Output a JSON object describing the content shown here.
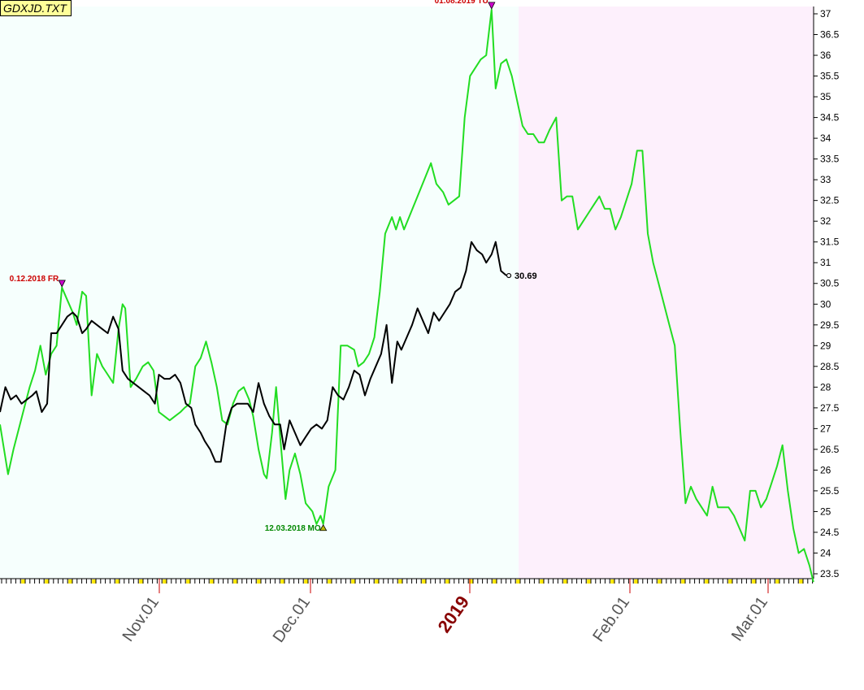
{
  "chart_data": {
    "type": "line",
    "ticker": "GDXJD.TXT",
    "x_tick_labels": [
      "Nov.01",
      "Dec.01",
      "2019",
      "Feb.01",
      "Mar.01"
    ],
    "y_ticks": [
      23.5,
      24,
      24.5,
      25,
      25.5,
      26,
      26.5,
      27,
      27.5,
      28,
      28.5,
      29,
      29.5,
      30,
      30.5,
      31,
      31.5,
      32,
      32.5,
      33,
      33.5,
      34,
      34.5,
      35,
      35.5,
      36,
      36.5,
      37
    ],
    "ylim": [
      23.3,
      37.2
    ],
    "series": [
      {
        "color": "#22dd22",
        "points": [
          [
            0,
            27.1
          ],
          [
            6,
            25.9
          ],
          [
            10,
            26.5
          ],
          [
            14,
            27
          ],
          [
            18,
            27.5
          ],
          [
            22,
            28
          ],
          [
            26,
            28.4
          ],
          [
            30,
            29
          ],
          [
            34,
            28.3
          ],
          [
            38,
            28.8
          ],
          [
            42,
            29
          ],
          [
            46,
            30.4
          ],
          [
            50,
            30.1
          ],
          [
            54,
            29.8
          ],
          [
            57,
            29.5
          ],
          [
            61,
            30.3
          ],
          [
            64,
            30.2
          ],
          [
            68,
            27.8
          ],
          [
            72,
            28.8
          ],
          [
            76,
            28.5
          ],
          [
            80,
            28.3
          ],
          [
            84,
            28.1
          ],
          [
            88,
            29.4
          ],
          [
            91,
            30
          ],
          [
            93,
            29.9
          ],
          [
            97,
            28
          ],
          [
            101,
            28.2
          ],
          [
            106,
            28.5
          ],
          [
            110,
            28.6
          ],
          [
            114,
            28.4
          ],
          [
            118,
            27.4
          ],
          [
            122,
            27.3
          ],
          [
            126,
            27.2
          ],
          [
            130,
            27.3
          ],
          [
            134,
            27.4
          ],
          [
            137,
            27.5
          ],
          [
            141,
            27.6
          ],
          [
            145,
            28.5
          ],
          [
            149,
            28.7
          ],
          [
            153,
            29.1
          ],
          [
            157,
            28.6
          ],
          [
            161,
            28
          ],
          [
            165,
            27.2
          ],
          [
            169,
            27.1
          ],
          [
            173,
            27.6
          ],
          [
            177,
            27.9
          ],
          [
            181,
            28
          ],
          [
            185,
            27.7
          ],
          [
            188,
            27.3
          ],
          [
            192,
            26.5
          ],
          [
            196,
            25.9
          ],
          [
            198,
            25.8
          ],
          [
            202,
            26.9
          ],
          [
            205,
            28
          ],
          [
            208,
            26.8
          ],
          [
            212,
            25.3
          ],
          [
            215,
            26
          ],
          [
            219,
            26.4
          ],
          [
            223,
            25.9
          ],
          [
            227,
            25.2
          ],
          [
            232,
            25
          ],
          [
            235,
            24.7
          ],
          [
            238,
            24.9
          ],
          [
            240,
            24.7
          ],
          [
            244,
            25.6
          ],
          [
            249,
            26
          ],
          [
            253,
            29
          ],
          [
            258,
            29
          ],
          [
            263,
            28.9
          ],
          [
            266,
            28.5
          ],
          [
            270,
            28.6
          ],
          [
            274,
            28.8
          ],
          [
            278,
            29.2
          ],
          [
            282,
            30.3
          ],
          [
            286,
            31.7
          ],
          [
            291,
            32.1
          ],
          [
            294,
            31.8
          ],
          [
            297,
            32.1
          ],
          [
            300,
            31.8
          ],
          [
            305,
            32.2
          ],
          [
            310,
            32.6
          ],
          [
            315,
            33
          ],
          [
            320,
            33.4
          ],
          [
            324,
            32.9
          ],
          [
            329,
            32.7
          ],
          [
            333,
            32.4
          ],
          [
            337,
            32.5
          ],
          [
            341,
            32.6
          ],
          [
            345,
            34.5
          ],
          [
            349,
            35.5
          ],
          [
            353,
            35.7
          ],
          [
            357,
            35.9
          ],
          [
            361,
            36
          ],
          [
            365,
            37.1
          ],
          [
            368,
            35.2
          ],
          [
            372,
            35.8
          ],
          [
            376,
            35.9
          ],
          [
            380,
            35.5
          ],
          [
            384,
            34.9
          ],
          [
            388,
            34.3
          ],
          [
            392,
            34.1
          ],
          [
            396,
            34.1
          ],
          [
            400,
            33.9
          ],
          [
            404,
            33.9
          ],
          [
            408,
            34.2
          ],
          [
            413,
            34.5
          ],
          [
            417,
            32.5
          ],
          [
            421,
            32.6
          ],
          [
            425,
            32.6
          ],
          [
            429,
            31.8
          ],
          [
            433,
            32
          ],
          [
            437,
            32.2
          ],
          [
            441,
            32.4
          ],
          [
            445,
            32.6
          ],
          [
            449,
            32.3
          ],
          [
            453,
            32.3
          ],
          [
            457,
            31.8
          ],
          [
            461,
            32.1
          ],
          [
            465,
            32.5
          ],
          [
            469,
            32.9
          ],
          [
            473,
            33.7
          ],
          [
            477,
            33.7
          ],
          [
            481,
            31.7
          ],
          [
            485,
            31
          ],
          [
            489,
            30.5
          ],
          [
            493,
            30
          ],
          [
            497,
            29.5
          ],
          [
            501,
            29
          ],
          [
            505,
            27
          ],
          [
            509,
            25.2
          ],
          [
            513,
            25.6
          ],
          [
            517,
            25.3
          ],
          [
            521,
            25.1
          ],
          [
            525,
            24.9
          ],
          [
            529,
            25.6
          ],
          [
            533,
            25.1
          ],
          [
            537,
            25.1
          ],
          [
            541,
            25.1
          ],
          [
            545,
            24.9
          ],
          [
            549,
            24.6
          ],
          [
            553,
            24.3
          ],
          [
            557,
            25.5
          ],
          [
            561,
            25.5
          ],
          [
            565,
            25.1
          ],
          [
            569,
            25.3
          ],
          [
            573,
            25.7
          ],
          [
            577,
            26.1
          ],
          [
            581,
            26.6
          ],
          [
            585,
            25.5
          ],
          [
            589,
            24.6
          ],
          [
            593,
            24
          ],
          [
            597,
            24.1
          ],
          [
            601,
            23.7
          ],
          [
            604,
            23.3
          ]
        ]
      },
      {
        "color": "#000000",
        "points": [
          [
            0,
            27.4
          ],
          [
            4,
            28
          ],
          [
            8,
            27.7
          ],
          [
            12,
            27.8
          ],
          [
            16,
            27.6
          ],
          [
            20,
            27.7
          ],
          [
            24,
            27.8
          ],
          [
            27,
            27.9
          ],
          [
            31,
            27.4
          ],
          [
            35,
            27.6
          ],
          [
            38,
            29.3
          ],
          [
            42,
            29.3
          ],
          [
            46,
            29.5
          ],
          [
            50,
            29.7
          ],
          [
            54,
            29.8
          ],
          [
            57,
            29.7
          ],
          [
            61,
            29.3
          ],
          [
            64,
            29.4
          ],
          [
            68,
            29.6
          ],
          [
            72,
            29.5
          ],
          [
            76,
            29.4
          ],
          [
            80,
            29.3
          ],
          [
            84,
            29.7
          ],
          [
            88,
            29.4
          ],
          [
            91,
            28.4
          ],
          [
            95,
            28.2
          ],
          [
            99,
            28.1
          ],
          [
            103,
            28
          ],
          [
            107,
            27.9
          ],
          [
            111,
            27.8
          ],
          [
            115,
            27.6
          ],
          [
            118,
            28.3
          ],
          [
            122,
            28.2
          ],
          [
            126,
            28.2
          ],
          [
            130,
            28.3
          ],
          [
            134,
            28.1
          ],
          [
            138,
            27.6
          ],
          [
            142,
            27.5
          ],
          [
            145,
            27.1
          ],
          [
            149,
            26.9
          ],
          [
            152,
            26.7
          ],
          [
            156,
            26.5
          ],
          [
            160,
            26.2
          ],
          [
            164,
            26.2
          ],
          [
            168,
            27.1
          ],
          [
            172,
            27.5
          ],
          [
            176,
            27.6
          ],
          [
            180,
            27.6
          ],
          [
            184,
            27.6
          ],
          [
            188,
            27.4
          ],
          [
            192,
            28.1
          ],
          [
            196,
            27.6
          ],
          [
            200,
            27.3
          ],
          [
            204,
            27.1
          ],
          [
            208,
            27.1
          ],
          [
            211,
            26.5
          ],
          [
            215,
            27.2
          ],
          [
            219,
            26.9
          ],
          [
            223,
            26.6
          ],
          [
            227,
            26.8
          ],
          [
            231,
            27
          ],
          [
            235,
            27.1
          ],
          [
            239,
            27
          ],
          [
            243,
            27.2
          ],
          [
            247,
            28
          ],
          [
            251,
            27.8
          ],
          [
            255,
            27.7
          ],
          [
            259,
            28
          ],
          [
            263,
            28.4
          ],
          [
            267,
            28.3
          ],
          [
            271,
            27.8
          ],
          [
            275,
            28.2
          ],
          [
            279,
            28.5
          ],
          [
            283,
            28.8
          ],
          [
            287,
            29.5
          ],
          [
            291,
            28.1
          ],
          [
            295,
            29.1
          ],
          [
            298,
            28.9
          ],
          [
            302,
            29.2
          ],
          [
            306,
            29.5
          ],
          [
            310,
            29.9
          ],
          [
            314,
            29.6
          ],
          [
            318,
            29.3
          ],
          [
            322,
            29.8
          ],
          [
            326,
            29.6
          ],
          [
            330,
            29.8
          ],
          [
            334,
            30
          ],
          [
            338,
            30.3
          ],
          [
            342,
            30.4
          ],
          [
            346,
            30.8
          ],
          [
            350,
            31.5
          ],
          [
            354,
            31.3
          ],
          [
            358,
            31.2
          ],
          [
            361,
            31
          ],
          [
            365,
            31.2
          ],
          [
            368,
            31.5
          ],
          [
            372,
            30.8
          ],
          [
            376,
            30.69
          ]
        ]
      }
    ],
    "annotations": [
      {
        "text": "0.12.2018 FR",
        "color": "#cc0000",
        "marker": "down",
        "at": [
          46,
          30.4
        ]
      },
      {
        "text": "12.03.2018 MO",
        "color": "#008800",
        "marker": "up",
        "at": [
          240,
          24.7
        ]
      },
      {
        "text": "01.08.2019 TU",
        "color": "#cc0000",
        "marker": "down",
        "at": [
          365,
          37.1
        ]
      }
    ],
    "last_value_label": "30.69"
  }
}
